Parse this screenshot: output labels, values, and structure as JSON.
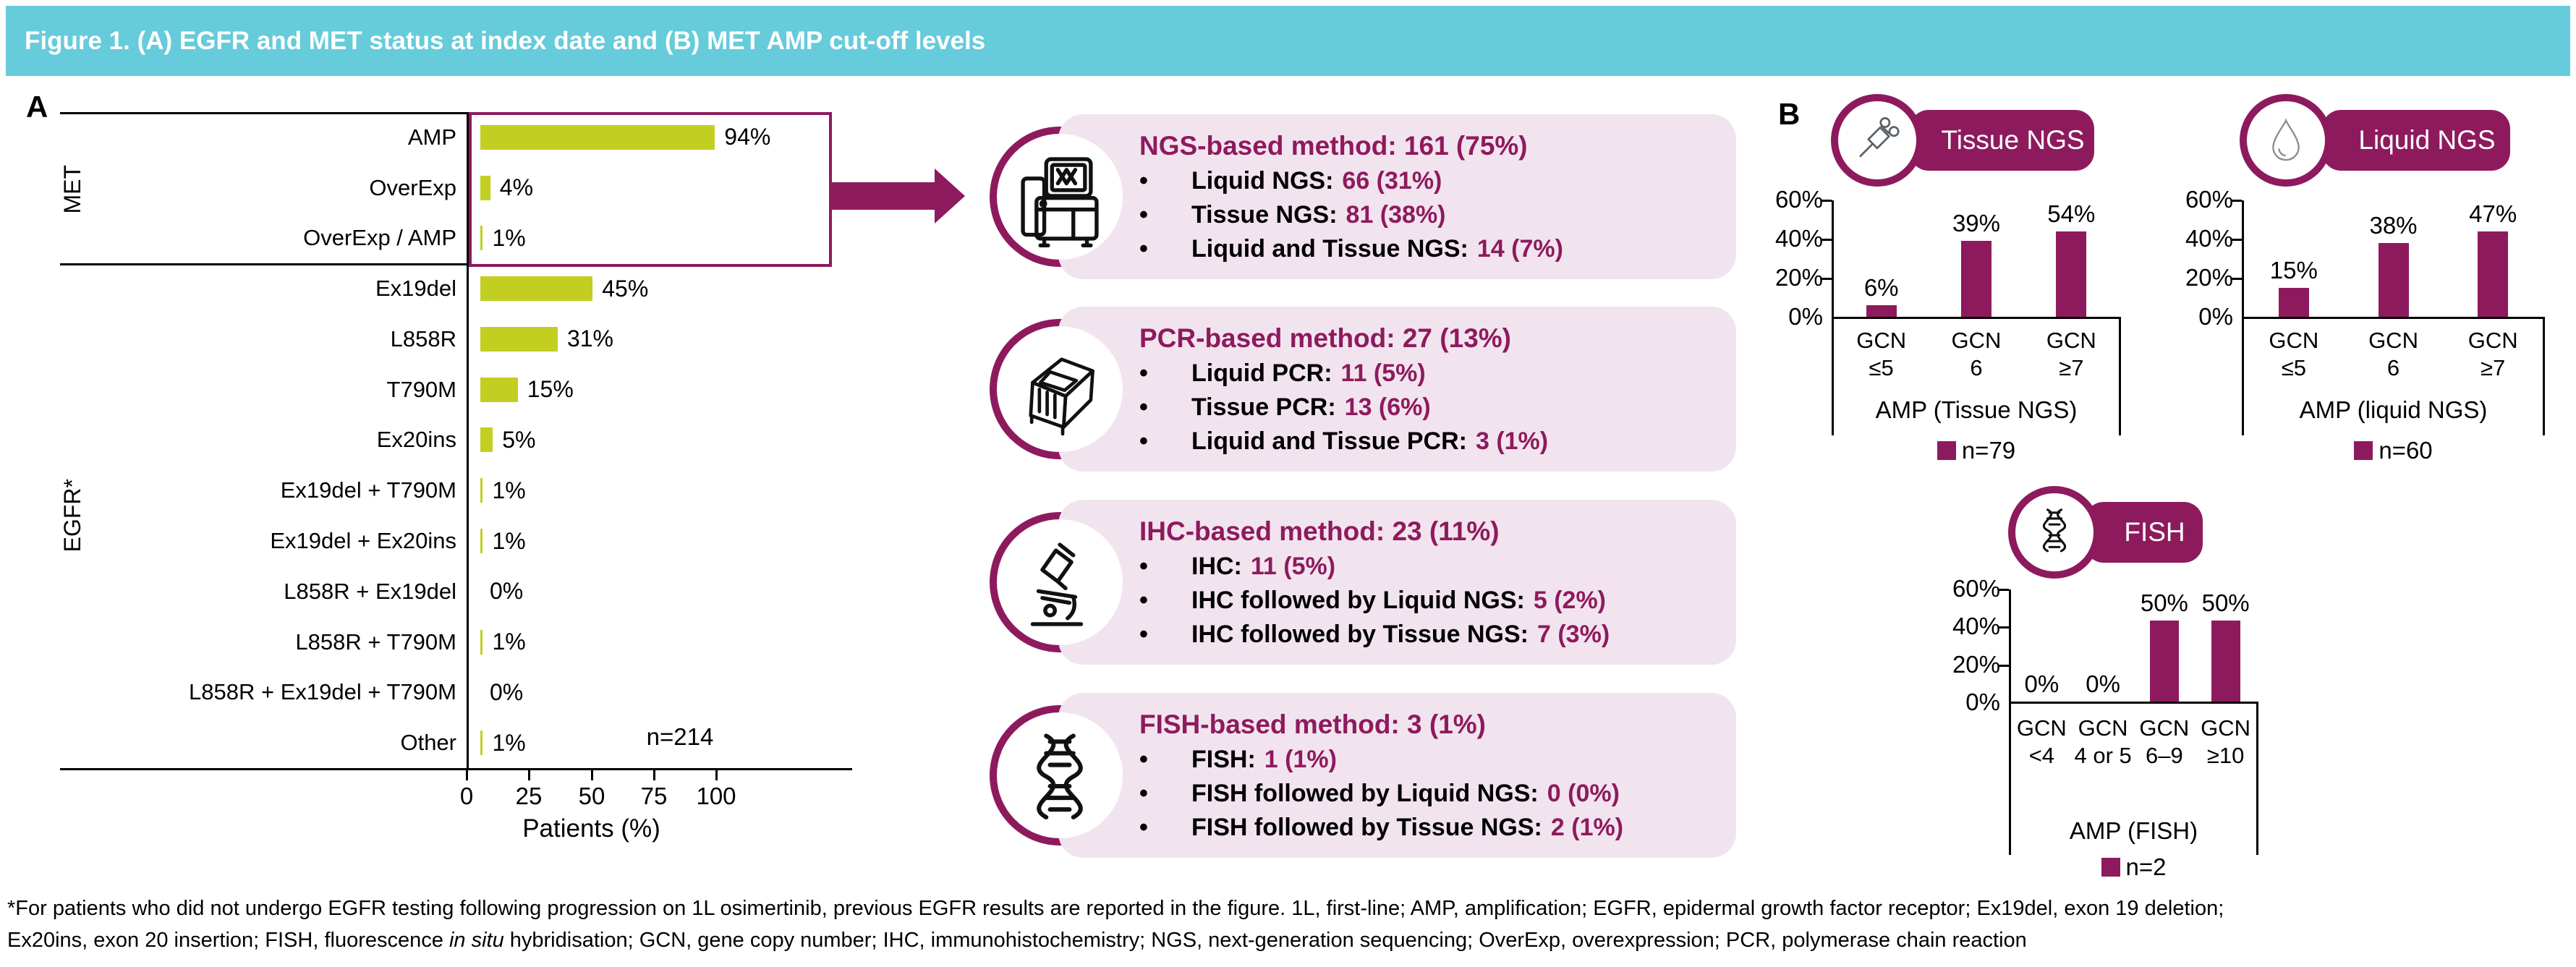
{
  "title": "Figure 1. (A) EGFR and MET status at index date and (B) MET AMP cut-off levels",
  "ui": {
    "bullet": "•"
  },
  "colors": {
    "teal": "#66CBDA",
    "magenta": "#8E1A5E",
    "lime": "#C2CF21",
    "pink_box": "#F2E4EE"
  },
  "panel_a": {
    "label": "A",
    "groups": {
      "met": "MET",
      "egfr": "EGFR*"
    },
    "rows": [
      {
        "label": "AMP",
        "value": "94%"
      },
      {
        "label": "OverExp",
        "value": "4%"
      },
      {
        "label": "OverExp / AMP",
        "value": "1%"
      },
      {
        "label": "Ex19del",
        "value": "45%"
      },
      {
        "label": "L858R",
        "value": "31%"
      },
      {
        "label": "T790M",
        "value": "15%"
      },
      {
        "label": "Ex20ins",
        "value": "5%"
      },
      {
        "label": "Ex19del + T790M",
        "value": "1%"
      },
      {
        "label": "Ex19del + Ex20ins",
        "value": "1%"
      },
      {
        "label": "L858R + Ex19del",
        "value": "0%"
      },
      {
        "label": "L858R + T790M",
        "value": "1%"
      },
      {
        "label": "L858R + Ex19del + T790M",
        "value": "0%"
      },
      {
        "label": "Other",
        "value": "1%"
      }
    ],
    "n_label": "n=214",
    "x_ticks": [
      "0",
      "25",
      "50",
      "75",
      "100"
    ],
    "xlabel": "Patients (%)"
  },
  "method_boxes": [
    {
      "icon": "sequencer-icon",
      "title": "NGS-based method: 161 (75%)",
      "bullets": [
        {
          "label": "Liquid NGS:",
          "value": "66 (31%)"
        },
        {
          "label": "Tissue NGS:",
          "value": "81 (38%)"
        },
        {
          "label": "Liquid and Tissue NGS:",
          "value": "14 (7%)"
        }
      ]
    },
    {
      "icon": "pcr-machine-icon",
      "title": "PCR-based method: 27 (13%)",
      "bullets": [
        {
          "label": "Liquid PCR:",
          "value": "11 (5%)"
        },
        {
          "label": "Tissue PCR:",
          "value": "13 (6%)"
        },
        {
          "label": "Liquid and Tissue PCR:",
          "value": "3 (1%)"
        }
      ]
    },
    {
      "icon": "microscope-icon",
      "title": "IHC-based method: 23 (11%)",
      "bullets": [
        {
          "label": "IHC:",
          "value": "11 (5%)"
        },
        {
          "label": "IHC followed by Liquid NGS:",
          "value": "5 (2%)"
        },
        {
          "label": "IHC followed by Tissue NGS:",
          "value": "7 (3%)"
        }
      ]
    },
    {
      "icon": "dna-icon",
      "title": "FISH-based method: 3 (1%)",
      "bullets": [
        {
          "label": "FISH:",
          "value": "1 (1%)"
        },
        {
          "label": "FISH followed by Liquid NGS:",
          "value": "0 (0%)"
        },
        {
          "label": "FISH followed by Tissue NGS:",
          "value": "2 (1%)"
        }
      ]
    }
  ],
  "panel_b": {
    "label": "B",
    "charts": [
      {
        "header": "Tissue NGS",
        "icon": "biopsy-needle-icon",
        "y_ticks": [
          "60%",
          "40%",
          "20%",
          "0%"
        ],
        "categories": [
          [
            "GCN",
            "≤5"
          ],
          [
            "GCN",
            "6"
          ],
          [
            "GCN",
            "≥7"
          ]
        ],
        "value_labels": [
          "6%",
          "39%",
          "54%"
        ],
        "axis_title": "AMP (Tissue NGS)",
        "legend": "n=79"
      },
      {
        "header": "Liquid NGS",
        "icon": "droplet-icon",
        "y_ticks": [
          "60%",
          "40%",
          "20%",
          "0%"
        ],
        "categories": [
          [
            "GCN",
            "≤5"
          ],
          [
            "GCN",
            "6"
          ],
          [
            "GCN",
            "≥7"
          ]
        ],
        "value_labels": [
          "15%",
          "38%",
          "47%"
        ],
        "axis_title": "AMP (liquid NGS)",
        "legend": "n=60"
      },
      {
        "header": "FISH",
        "icon": "dna-icon",
        "y_ticks": [
          "60%",
          "40%",
          "20%",
          "0%"
        ],
        "categories": [
          [
            "GCN",
            "<4"
          ],
          [
            "GCN",
            "4 or 5"
          ],
          [
            "GCN",
            "6–9"
          ],
          [
            "GCN",
            "≥10"
          ]
        ],
        "value_labels": [
          "0%",
          "0%",
          "50%",
          "50%"
        ],
        "axis_title": "AMP (FISH)",
        "legend": "n=2"
      }
    ]
  },
  "footnote": {
    "line1": "*For patients who did not undergo EGFR testing following progression on 1L osimertinib, previous EGFR results are reported in the figure. 1L, first-line; AMP, amplification; EGFR, epidermal growth factor receptor; Ex19del, exon 19 deletion;",
    "line2_pre": "Ex20ins, exon 20 insertion; FISH, fluorescence ",
    "line2_italic": "in situ",
    "line2_post": " hybridisation; GCN, gene copy number; IHC, immunohistochemistry; NGS, next-generation sequencing; OverExp, overexpression; PCR, polymerase chain reaction"
  },
  "chart_data": [
    {
      "type": "bar",
      "orientation": "horizontal",
      "title": "A: EGFR and MET status at index date",
      "categories": [
        "AMP",
        "OverExp",
        "OverExp / AMP",
        "Ex19del",
        "L858R",
        "T790M",
        "Ex20ins",
        "Ex19del + T790M",
        "Ex19del + Ex20ins",
        "L858R + Ex19del",
        "L858R + T790M",
        "L858R + Ex19del + T790M",
        "Other"
      ],
      "values": [
        94,
        4,
        1,
        45,
        31,
        15,
        5,
        1,
        1,
        0,
        1,
        0,
        1
      ],
      "category_groups": [
        "MET",
        "MET",
        "MET",
        "EGFR*",
        "EGFR*",
        "EGFR*",
        "EGFR*",
        "EGFR*",
        "EGFR*",
        "EGFR*",
        "EGFR*",
        "EGFR*",
        "EGFR*"
      ],
      "xlabel": "Patients (%)",
      "xlim": [
        0,
        100
      ],
      "x_ticks": [
        0,
        25,
        50,
        75,
        100
      ],
      "n": 214,
      "bar_color": "#C2CF21",
      "grid": false
    },
    {
      "type": "bar",
      "title": "Tissue NGS",
      "categories": [
        "GCN ≤5",
        "GCN 6",
        "GCN ≥7"
      ],
      "values": [
        6,
        39,
        54
      ],
      "value_labels": [
        "6%",
        "39%",
        "54%"
      ],
      "xlabel": "AMP (Tissue NGS)",
      "ylim": [
        0,
        60
      ],
      "y_ticks": [
        0,
        20,
        40,
        60
      ],
      "legend": "n=79",
      "n": 79,
      "bar_color": "#8E1A5E",
      "grid": false
    },
    {
      "type": "bar",
      "title": "Liquid NGS",
      "categories": [
        "GCN ≤5",
        "GCN 6",
        "GCN ≥7"
      ],
      "values": [
        15,
        38,
        47
      ],
      "value_labels": [
        "15%",
        "38%",
        "47%"
      ],
      "xlabel": "AMP (liquid NGS)",
      "ylim": [
        0,
        60
      ],
      "y_ticks": [
        0,
        20,
        40,
        60
      ],
      "legend": "n=60",
      "n": 60,
      "bar_color": "#8E1A5E",
      "grid": false
    },
    {
      "type": "bar",
      "title": "FISH",
      "categories": [
        "GCN <4",
        "GCN 4 or 5",
        "GCN 6–9",
        "GCN ≥10"
      ],
      "values": [
        0,
        0,
        50,
        50
      ],
      "value_labels": [
        "0%",
        "0%",
        "50%",
        "50%"
      ],
      "xlabel": "AMP (FISH)",
      "ylim": [
        0,
        60
      ],
      "y_ticks": [
        0,
        20,
        40,
        60
      ],
      "legend": "n=2",
      "n": 2,
      "bar_color": "#8E1A5E",
      "grid": false
    }
  ]
}
